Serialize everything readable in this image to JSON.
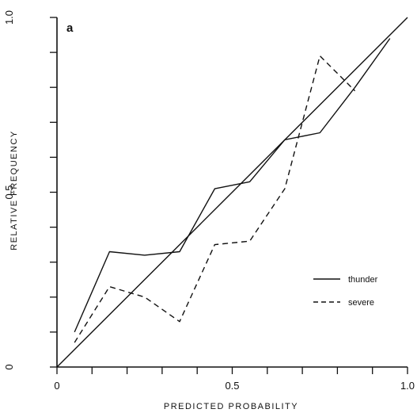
{
  "chart_data": {
    "type": "line",
    "panel_label": "a",
    "xlabel": "PREDICTED PROBABILITY",
    "ylabel": "RELATIVE FREQUENCY",
    "xlim": [
      0,
      1
    ],
    "ylim": [
      0,
      1
    ],
    "x_ticks": [
      0,
      0.1,
      0.2,
      0.3,
      0.4,
      0.5,
      0.6,
      0.7,
      0.8,
      0.9,
      1.0
    ],
    "y_ticks": [
      0,
      0.1,
      0.2,
      0.3,
      0.4,
      0.5,
      0.6,
      0.7,
      0.8,
      0.9,
      1.0
    ],
    "x_tick_labels": [
      {
        "value": 0,
        "label": "0"
      },
      {
        "value": 0.5,
        "label": "0.5"
      },
      {
        "value": 1.0,
        "label": "1.0"
      }
    ],
    "y_tick_labels": [
      {
        "value": 0,
        "label": "0"
      },
      {
        "value": 0.5,
        "label": "0.5"
      },
      {
        "value": 1.0,
        "label": "1.0"
      }
    ],
    "grid": false,
    "legend_position": "bottom-right",
    "reference_line": {
      "x": [
        0,
        1
      ],
      "y": [
        0,
        1
      ],
      "style": "solid"
    },
    "series": [
      {
        "name": "thunder",
        "style": "solid",
        "x": [
          0.05,
          0.15,
          0.25,
          0.35,
          0.45,
          0.55,
          0.65,
          0.75,
          0.85,
          0.95
        ],
        "y": [
          0.1,
          0.33,
          0.32,
          0.33,
          0.51,
          0.53,
          0.65,
          0.67,
          0.8,
          0.94
        ]
      },
      {
        "name": "severe",
        "style": "dashed",
        "x": [
          0.05,
          0.15,
          0.25,
          0.35,
          0.45,
          0.55,
          0.65,
          0.75,
          0.85
        ],
        "y": [
          0.07,
          0.23,
          0.2,
          0.13,
          0.35,
          0.36,
          0.51,
          0.89,
          0.79
        ]
      }
    ]
  }
}
